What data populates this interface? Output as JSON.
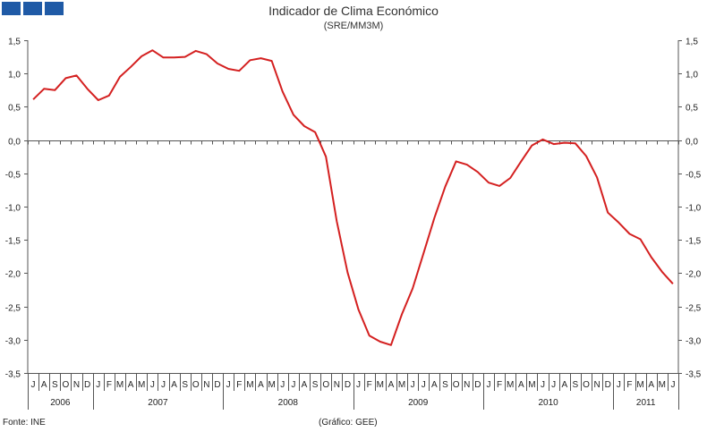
{
  "header": {
    "title": "Indicador de Clima Económico",
    "subtitle": "(SRE/MM3M)"
  },
  "footer": {
    "source": "Fonte: INE",
    "credit": "(Gráfico: GEE)"
  },
  "colors": {
    "line": "#d42020",
    "logo": "#1f5aa6",
    "axis": "#555555"
  },
  "chart_data": {
    "type": "line",
    "title": "Indicador de Clima Económico",
    "subtitle": "(SRE/MM3M)",
    "ylim": [
      -3.5,
      1.5
    ],
    "yticks": [
      1.5,
      1.0,
      0.5,
      0.0,
      -0.5,
      -1.0,
      -1.5,
      -2.0,
      -2.5,
      -3.0,
      -3.5
    ],
    "ytick_labels": [
      "1,5",
      "1,0",
      "0,5",
      "0,0",
      "-0,5",
      "-1,0",
      "-1,5",
      "-2,0",
      "-2,5",
      "-3,0",
      "-3,5"
    ],
    "grid": false,
    "zero_line": true,
    "month_labels": [
      "J",
      "A",
      "S",
      "O",
      "N",
      "D",
      "J",
      "F",
      "M",
      "A",
      "M",
      "J",
      "J",
      "A",
      "S",
      "O",
      "N",
      "D",
      "J",
      "F",
      "M",
      "A",
      "M",
      "J",
      "J",
      "A",
      "S",
      "O",
      "N",
      "D",
      "J",
      "F",
      "M",
      "A",
      "M",
      "J",
      "J",
      "A",
      "S",
      "O",
      "N",
      "D",
      "J",
      "F",
      "M",
      "A",
      "M",
      "J",
      "J",
      "A",
      "S",
      "O",
      "N",
      "D",
      "J",
      "F",
      "M",
      "A",
      "M",
      "J"
    ],
    "years": [
      {
        "label": "2006",
        "months": 6
      },
      {
        "label": "2007",
        "months": 12
      },
      {
        "label": "2008",
        "months": 12
      },
      {
        "label": "2009",
        "months": 12
      },
      {
        "label": "2010",
        "months": 12
      },
      {
        "label": "2011",
        "months": 6
      }
    ],
    "series": [
      {
        "values": [
          0.61,
          0.77,
          0.75,
          0.93,
          0.97,
          0.77,
          0.6,
          0.67,
          0.95,
          1.1,
          1.26,
          1.35,
          1.24,
          1.24,
          1.25,
          1.34,
          1.29,
          1.15,
          1.07,
          1.04,
          1.2,
          1.23,
          1.19,
          0.73,
          0.38,
          0.21,
          0.12,
          -0.25,
          -1.22,
          -1.99,
          -2.55,
          -2.94,
          -3.03,
          -3.08,
          -2.62,
          -2.23,
          -1.7,
          -1.17,
          -0.7,
          -0.32,
          -0.37,
          -0.48,
          -0.64,
          -0.69,
          -0.57,
          -0.32,
          -0.08,
          0.01,
          -0.06,
          -0.04,
          -0.05,
          -0.24,
          -0.56,
          -1.09,
          -1.24,
          -1.41,
          -1.49,
          -1.76,
          -1.98,
          -2.16
        ]
      }
    ]
  }
}
